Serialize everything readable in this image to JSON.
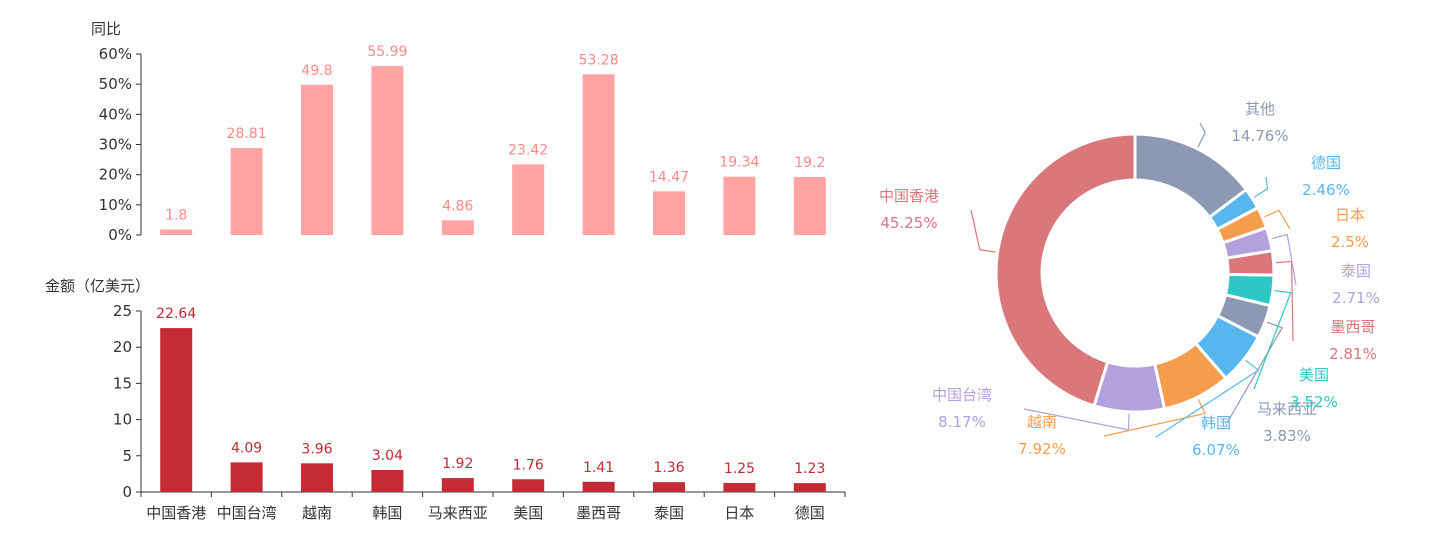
{
  "chart_data": [
    {
      "type": "bar",
      "ylabel": "同比",
      "categories": [
        "中国香港",
        "中国台湾",
        "越南",
        "韩国",
        "马来西亚",
        "美国",
        "墨西哥",
        "泰国",
        "日本",
        "德国"
      ],
      "values": [
        1.8,
        28.81,
        49.8,
        55.99,
        4.86,
        23.42,
        53.28,
        14.47,
        19.34,
        19.2
      ],
      "value_labels": [
        "1.8",
        "28.81",
        "49.8",
        "55.99",
        "4.86",
        "23.42",
        "53.28",
        "14.47",
        "19.34",
        "19.2"
      ],
      "ylim": [
        0,
        60
      ],
      "yticks": [
        "0%",
        "10%",
        "20%",
        "30%",
        "40%",
        "50%",
        "60%"
      ],
      "color": "#ffa3a3",
      "label_color": "#ff8a8a"
    },
    {
      "type": "bar",
      "ylabel": "金额（亿美元）",
      "categories": [
        "中国香港",
        "中国台湾",
        "越南",
        "韩国",
        "马来西亚",
        "美国",
        "墨西哥",
        "泰国",
        "日本",
        "德国"
      ],
      "values": [
        22.64,
        4.09,
        3.96,
        3.04,
        1.92,
        1.76,
        1.41,
        1.36,
        1.25,
        1.23
      ],
      "value_labels": [
        "22.64",
        "4.09",
        "3.96",
        "3.04",
        "1.92",
        "1.76",
        "1.41",
        "1.36",
        "1.25",
        "1.23"
      ],
      "ylim": [
        0,
        25
      ],
      "yticks": [
        "0",
        "5",
        "10",
        "15",
        "20",
        "25"
      ],
      "color": "#c42b34",
      "label_color": "#c42b34"
    },
    {
      "type": "pie",
      "slices": [
        {
          "name": "中国香港",
          "value": 45.25,
          "label": "45.25%",
          "color": "#d9777b"
        },
        {
          "name": "中国台湾",
          "value": 8.17,
          "label": "8.17%",
          "color": "#b3a1de"
        },
        {
          "name": "越南",
          "value": 7.92,
          "label": "7.92%",
          "color": "#f59c4d"
        },
        {
          "name": "韩国",
          "value": 6.07,
          "label": "6.07%",
          "color": "#58b6ee"
        },
        {
          "name": "马来西亚",
          "value": 3.83,
          "label": "3.83%",
          "color": "#8d98b3"
        },
        {
          "name": "美国",
          "value": 3.52,
          "label": "3.52%",
          "color": "#2cc7c6"
        },
        {
          "name": "墨西哥",
          "value": 2.81,
          "label": "2.81%",
          "color": "#d9777b"
        },
        {
          "name": "泰国",
          "value": 2.71,
          "label": "2.71%",
          "color": "#b3a1de"
        },
        {
          "name": "日本",
          "value": 2.5,
          "label": "2.5%",
          "color": "#f59c4d"
        },
        {
          "name": "德国",
          "value": 2.46,
          "label": "2.46%",
          "color": "#58b6ee"
        },
        {
          "name": "其他",
          "value": 14.76,
          "label": "14.76%",
          "color": "#8d98b3"
        }
      ]
    }
  ]
}
